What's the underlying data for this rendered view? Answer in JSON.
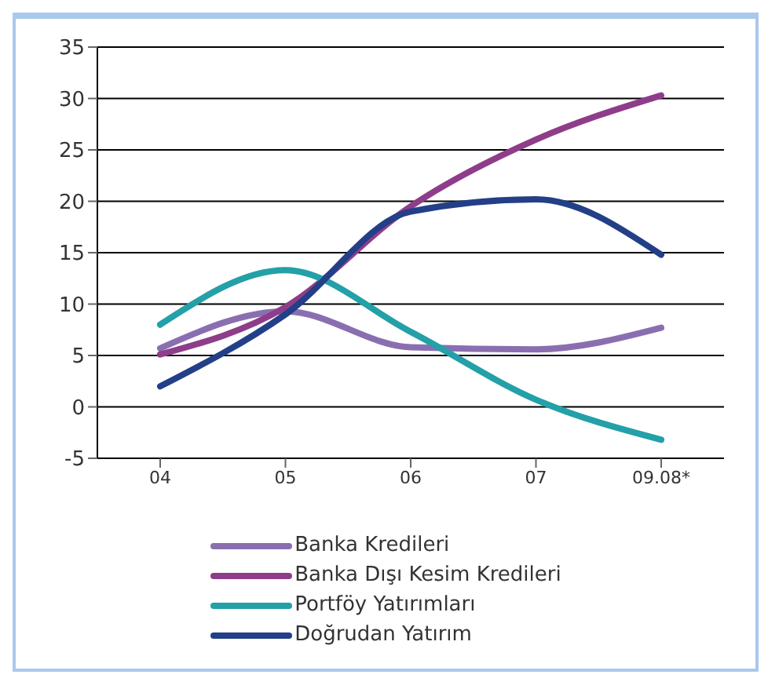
{
  "chart_data": {
    "type": "line",
    "categories": [
      "04",
      "05",
      "06",
      "07",
      "09.08*"
    ],
    "series": [
      {
        "name": "Banka Kredileri",
        "color": "#8a6fb0",
        "values": [
          5.7,
          9.3,
          5.8,
          5.6,
          7.7
        ]
      },
      {
        "name": "Banka Dışı Kesim Kredileri",
        "color": "#8e3d8a",
        "values": [
          5.1,
          9.7,
          19.5,
          26,
          30.3
        ]
      },
      {
        "name": "Portföy Yatırımları",
        "color": "#23a0a8",
        "values": [
          8,
          13.3,
          7.3,
          0.7,
          -3.2
        ]
      },
      {
        "name": "Doğrudan Yatırım",
        "color": "#233f87",
        "values": [
          2,
          9,
          19,
          20.2,
          14.8
        ]
      }
    ],
    "ylim": [
      -5,
      35
    ],
    "yticks": [
      -5,
      0,
      5,
      10,
      15,
      20,
      25,
      30,
      35
    ],
    "grid": "y",
    "legend": "bottom",
    "marker": "none",
    "line_style": "solid"
  }
}
